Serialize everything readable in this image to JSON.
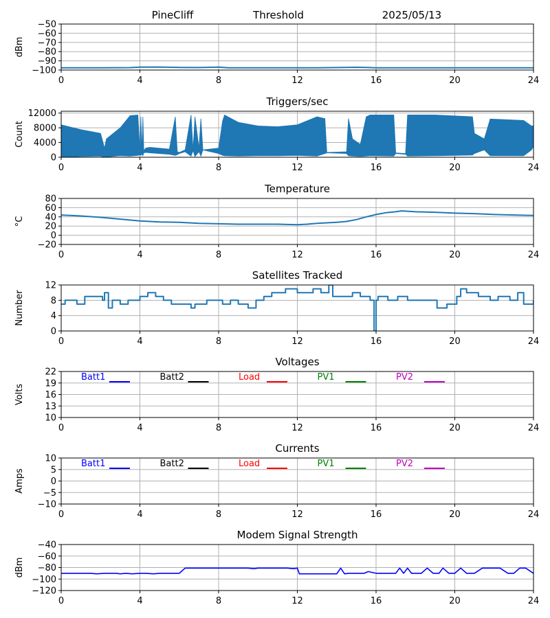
{
  "header": {
    "station": "PineCliff",
    "mode": "Threshold",
    "date": "2025/05/13"
  },
  "x_ticks": [
    0,
    4,
    8,
    12,
    16,
    20,
    24
  ],
  "chart_data": [
    {
      "id": "threshold",
      "type": "line",
      "title": "",
      "ylabel": "dBm",
      "xlim": [
        0,
        24
      ],
      "ylim": [
        -100,
        -50
      ],
      "yticks": [
        -100,
        -90,
        -80,
        -70,
        -60,
        -50
      ],
      "color": "#1f77b4",
      "series": [
        {
          "x": [
            0,
            2,
            3.5,
            4,
            5,
            6,
            7,
            8,
            8.5,
            10,
            12,
            13,
            14,
            15,
            15.5,
            16,
            17,
            18,
            20,
            22,
            24
          ],
          "values": [
            -97.5,
            -97.5,
            -97.4,
            -96.8,
            -96.7,
            -97.2,
            -97.3,
            -96.9,
            -97.5,
            -97.5,
            -97.6,
            -97.5,
            -97.3,
            -97.0,
            -97.2,
            -97.5,
            -97.6,
            -97.5,
            -97.6,
            -97.5,
            -97.5
          ]
        }
      ]
    },
    {
      "id": "triggers",
      "type": "area",
      "title": "Triggers/sec",
      "ylabel": "Count",
      "xlim": [
        0,
        24
      ],
      "ylim": [
        0,
        12500
      ],
      "yticks": [
        0,
        4000,
        8000,
        12000
      ],
      "color": "#1f77b4",
      "envelope": {
        "x": [
          0,
          1,
          2,
          2.2,
          2.3,
          3,
          3.5,
          3.9,
          4.0,
          4.05,
          4.1,
          4.15,
          4.2,
          4.3,
          4.5,
          5.5,
          5.8,
          5.9,
          6.0,
          6.3,
          6.6,
          6.7,
          6.8,
          7.0,
          7.1,
          7.2,
          8.0,
          8.2,
          8.3,
          9.0,
          10,
          11,
          12,
          13,
          13.4,
          13.5,
          14.5,
          14.6,
          14.8,
          15.2,
          15.5,
          15.7,
          16.9,
          17.0,
          17.5,
          17.6,
          19,
          20.9,
          21.0,
          21.5,
          21.8,
          23.5,
          23.9,
          24
        ],
        "high": [
          8800,
          7500,
          6500,
          2500,
          5000,
          8000,
          11300,
          11500,
          2000,
          11000,
          1500,
          11000,
          1800,
          2500,
          2700,
          2200,
          11000,
          1500,
          1300,
          2000,
          11500,
          2000,
          11000,
          2500,
          10500,
          2000,
          2500,
          9800,
          11500,
          9500,
          8500,
          8300,
          8800,
          11000,
          10500,
          1300,
          1500,
          10500,
          5000,
          3500,
          11000,
          11500,
          11500,
          1200,
          1000,
          11500,
          11500,
          11000,
          6500,
          5000,
          10400,
          10000,
          8500,
          8500
        ],
        "low": [
          0,
          200,
          300,
          0,
          100,
          400,
          300,
          500,
          600,
          500,
          900,
          400,
          1200,
          1300,
          1200,
          800,
          500,
          700,
          1000,
          1500,
          300,
          1800,
          200,
          1500,
          300,
          2000,
          1000,
          500,
          400,
          300,
          400,
          400,
          500,
          300,
          1000,
          1200,
          1000,
          400,
          300,
          200,
          300,
          400,
          300,
          1000,
          800,
          300,
          400,
          600,
          1000,
          2000,
          400,
          400,
          2000,
          3000
        ]
      }
    },
    {
      "id": "temperature",
      "type": "line",
      "title": "Temperature",
      "ylabel": "°C",
      "xlim": [
        0,
        24
      ],
      "ylim": [
        -20,
        80
      ],
      "yticks": [
        -20,
        0,
        20,
        40,
        60,
        80
      ],
      "color": "#1f77b4",
      "series": [
        {
          "x": [
            0,
            1,
            2,
            3,
            4,
            5,
            6,
            7,
            8,
            9,
            10,
            11,
            12,
            12.5,
            13,
            14,
            14.5,
            15,
            15.5,
            16,
            16.5,
            17,
            17.3,
            18,
            19,
            20,
            21,
            22,
            23,
            24
          ],
          "values": [
            44,
            42,
            39,
            35,
            31,
            29,
            28,
            26,
            25,
            24,
            24,
            24,
            23,
            24,
            26,
            28,
            30,
            34,
            40,
            45,
            49,
            51,
            53,
            51,
            50,
            48,
            47,
            45,
            44,
            43
          ]
        }
      ]
    },
    {
      "id": "satellites",
      "type": "line",
      "title": "Satellites Tracked",
      "ylabel": "Number",
      "xlim": [
        0,
        24
      ],
      "ylim": [
        0,
        12
      ],
      "yticks": [
        0,
        4,
        8,
        12
      ],
      "color": "#1f77b4",
      "series": [
        {
          "x": [
            0,
            0.2,
            0.8,
            1.2,
            2.1,
            2.2,
            2.4,
            2.6,
            3,
            3.4,
            4,
            4.4,
            4.8,
            5.2,
            5.6,
            6,
            6.6,
            6.8,
            7.4,
            7.9,
            8.2,
            8.6,
            9,
            9.5,
            9.9,
            10.3,
            10.7,
            11,
            11.4,
            12,
            12.4,
            12.8,
            13.2,
            13.6,
            13.8,
            14.4,
            14.8,
            15.2,
            15.7,
            15.9,
            16.0,
            16.1,
            16.6,
            17.1,
            17.6,
            18.3,
            19.1,
            19.6,
            20.1,
            20.3,
            20.6,
            21.2,
            21.8,
            22.2,
            22.8,
            23.2,
            23.5,
            24
          ],
          "values": [
            7,
            8,
            7,
            9,
            8,
            10,
            6,
            8,
            7,
            8,
            9,
            10,
            9,
            8,
            7,
            7,
            6,
            7,
            8,
            8,
            7,
            8,
            7,
            6,
            8,
            9,
            10,
            10,
            11,
            10,
            10,
            11,
            10,
            12,
            9,
            9,
            10,
            9,
            8,
            0,
            8,
            9,
            8,
            9,
            8,
            8,
            6,
            7,
            9,
            11,
            10,
            9,
            8,
            9,
            8,
            10,
            7,
            8
          ]
        }
      ]
    },
    {
      "id": "voltages",
      "type": "line",
      "title": "Voltages",
      "ylabel": "Volts",
      "xlim": [
        0,
        24
      ],
      "ylim": [
        10,
        22
      ],
      "yticks": [
        10,
        13,
        16,
        19,
        22
      ],
      "series": [],
      "legend": [
        {
          "name": "Batt1",
          "color": "#0000ff"
        },
        {
          "name": "Batt2",
          "color": "#000000"
        },
        {
          "name": "Load",
          "color": "#ff0000"
        },
        {
          "name": "PV1",
          "color": "#008000"
        },
        {
          "name": "PV2",
          "color": "#bf00bf"
        }
      ]
    },
    {
      "id": "currents",
      "type": "line",
      "title": "Currents",
      "ylabel": "Amps",
      "xlim": [
        0,
        24
      ],
      "ylim": [
        -10,
        10
      ],
      "yticks": [
        -10,
        -5,
        0,
        5,
        10
      ],
      "series": [],
      "legend": [
        {
          "name": "Batt1",
          "color": "#0000ff"
        },
        {
          "name": "Batt2",
          "color": "#000000"
        },
        {
          "name": "Load",
          "color": "#ff0000"
        },
        {
          "name": "PV1",
          "color": "#008000"
        },
        {
          "name": "PV2",
          "color": "#bf00bf"
        }
      ]
    },
    {
      "id": "modem",
      "type": "line",
      "title": "Modem Signal Strength",
      "ylabel": "dBm",
      "xlim": [
        0,
        24
      ],
      "ylim": [
        -120,
        -40
      ],
      "yticks": [
        -120,
        -100,
        -80,
        -60,
        -40
      ],
      "color": "#0000ff",
      "series": [
        {
          "x": [
            0,
            1.5,
            1.8,
            2.2,
            2.8,
            3.0,
            3.3,
            3.6,
            4.0,
            4.3,
            4.7,
            5.0,
            5.5,
            6.0,
            6.3,
            7,
            8,
            9,
            9.5,
            9.8,
            10,
            11,
            11.5,
            11.8,
            12.0,
            12.1,
            13,
            14,
            14.2,
            14.4,
            14.6,
            15,
            15.4,
            15.6,
            16,
            16.5,
            17,
            17.2,
            17.4,
            17.6,
            17.8,
            18.3,
            18.6,
            18.9,
            19.2,
            19.4,
            19.7,
            20,
            20.3,
            20.6,
            21,
            21.4,
            21.8,
            22.3,
            22.7,
            23.0,
            23.3,
            23.6,
            24
          ],
          "values": [
            -90,
            -90,
            -91,
            -90,
            -90,
            -91,
            -90,
            -91,
            -90,
            -90,
            -91,
            -90,
            -90,
            -90,
            -81,
            -81,
            -81,
            -81,
            -81,
            -82,
            -81,
            -81,
            -81,
            -82,
            -81,
            -91,
            -91,
            -91,
            -81,
            -91,
            -90,
            -90,
            -90,
            -87,
            -90,
            -90,
            -90,
            -81,
            -90,
            -81,
            -90,
            -90,
            -81,
            -90,
            -90,
            -81,
            -90,
            -90,
            -81,
            -90,
            -90,
            -81,
            -81,
            -81,
            -90,
            -90,
            -81,
            -81,
            -90
          ]
        }
      ]
    }
  ]
}
